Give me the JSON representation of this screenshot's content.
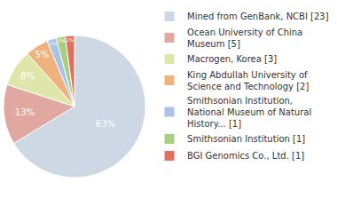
{
  "chart_data": {
    "type": "pie",
    "categories": [
      "Mined from GenBank, NCBI [23]",
      "Ocean University of China Museum [5]",
      "Macrogen, Korea [3]",
      "King Abdullah University of Science and Technology [2]",
      "Smithsonian Institution, National Museum of Natural History... [1]",
      "Smithsonian Institution [1]",
      "BGI Genomics Co., Ltd. [1]"
    ],
    "values": [
      63,
      13,
      8,
      5,
      2,
      2,
      2
    ],
    "value_labels": [
      "63%",
      "13%",
      "8%",
      "5%",
      "2%",
      "2%",
      "2%"
    ],
    "colors": [
      "#cdd8e4",
      "#e0a8a0",
      "#dfe6aa",
      "#f0b27c",
      "#a9c2e6",
      "#a7cf80",
      "#e0705f"
    ],
    "data_labels": true,
    "legend": "right"
  }
}
